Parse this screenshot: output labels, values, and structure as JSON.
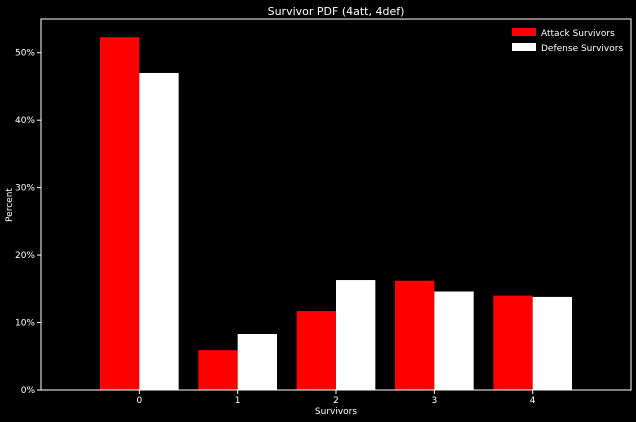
{
  "chart_data": {
    "type": "bar",
    "title": "Survivor PDF (4att, 4def)",
    "xlabel": "Survivors",
    "ylabel": "Percent",
    "categories": [
      "0",
      "1",
      "2",
      "3",
      "4"
    ],
    "series": [
      {
        "name": "Attack Survivors",
        "color": "#ff0000",
        "values": [
          52.3,
          5.9,
          11.7,
          16.2,
          14.0
        ]
      },
      {
        "name": "Defense Survivors",
        "color": "#ffffff",
        "values": [
          47.0,
          8.3,
          16.3,
          14.6,
          13.8
        ]
      }
    ],
    "ylim": [
      0,
      55
    ],
    "yticks": [
      0,
      10,
      20,
      30,
      40,
      50
    ],
    "ytick_labels": [
      "0%",
      "10%",
      "20%",
      "30%",
      "40%",
      "50%"
    ],
    "legend": "top-right",
    "grid": false,
    "background": "#000000",
    "axis_color": "#ffffff"
  }
}
